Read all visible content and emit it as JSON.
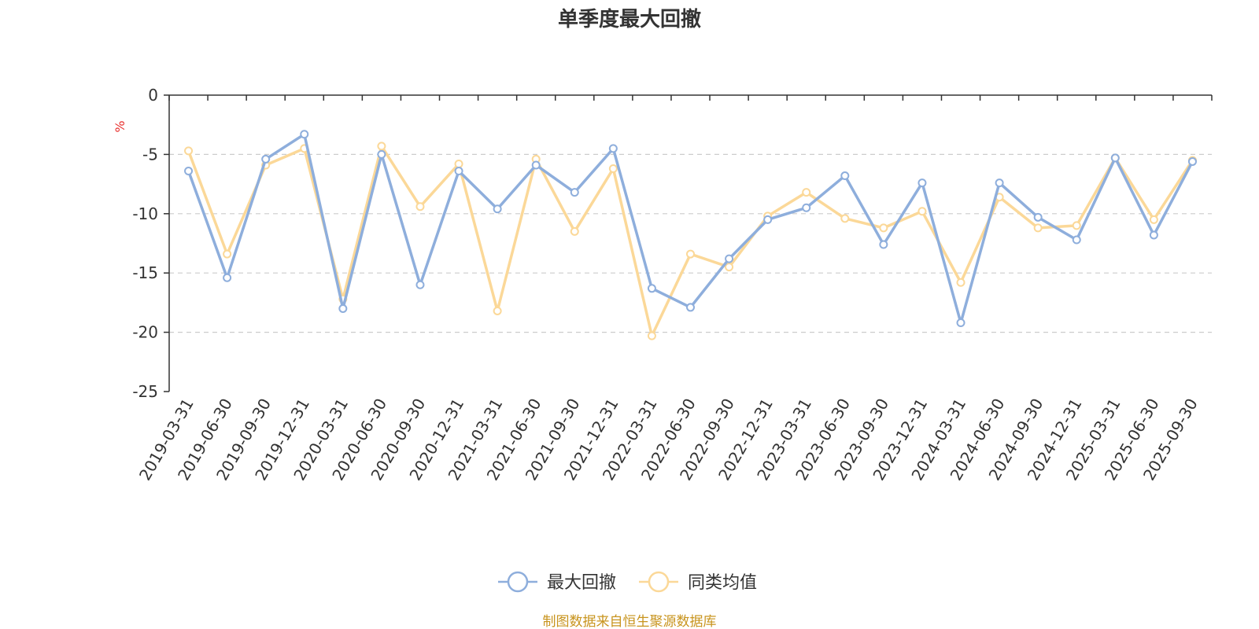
{
  "chart_data": {
    "type": "line",
    "title": "单季度最大回撤",
    "ylabel": "%",
    "ylim": [
      -25,
      0
    ],
    "yticks": [
      0,
      -5,
      -10,
      -15,
      -20,
      -25
    ],
    "grid": true,
    "legend_position": "bottom-center",
    "categories": [
      "2019-03-31",
      "2019-06-30",
      "2019-09-30",
      "2019-12-31",
      "2020-03-31",
      "2020-06-30",
      "2020-09-30",
      "2020-12-31",
      "2021-03-31",
      "2021-06-30",
      "2021-09-30",
      "2021-12-31",
      "2022-03-31",
      "2022-06-30",
      "2022-09-30",
      "2022-12-31",
      "2023-03-31",
      "2023-06-30",
      "2023-09-30",
      "2023-12-31",
      "2024-03-31",
      "2024-06-30",
      "2024-09-30",
      "2024-12-31",
      "2025-03-31",
      "2025-06-30",
      "2025-09-30"
    ],
    "series": [
      {
        "name": "最大回撤",
        "color": "#8eaedc",
        "values": [
          -6.4,
          -15.4,
          -5.4,
          -3.3,
          -18.0,
          -5.0,
          -16.0,
          -6.4,
          -9.6,
          -5.9,
          -8.2,
          -4.5,
          -16.3,
          -17.9,
          -13.8,
          -10.5,
          -9.5,
          -6.8,
          -12.6,
          -7.4,
          -19.2,
          -7.4,
          -10.3,
          -12.2,
          -5.3,
          -11.8,
          -5.6
        ]
      },
      {
        "name": "同类均值",
        "color": "#fbd898",
        "values": [
          -4.7,
          -13.4,
          -5.9,
          -4.5,
          -17.2,
          -4.3,
          -9.4,
          -5.8,
          -18.2,
          -5.4,
          -11.5,
          -6.2,
          -20.3,
          -13.4,
          -14.5,
          -10.2,
          -8.2,
          -10.4,
          -11.2,
          -9.8,
          -15.8,
          -8.6,
          -11.2,
          -11.0,
          -5.3,
          -10.5,
          -5.5
        ]
      }
    ]
  },
  "source_text": "制图数据来自恒生聚源数据库",
  "colors": {
    "unit": "#e8312f",
    "source": "#c8941e",
    "axis": "#333333",
    "grid": "#cccccc"
  }
}
